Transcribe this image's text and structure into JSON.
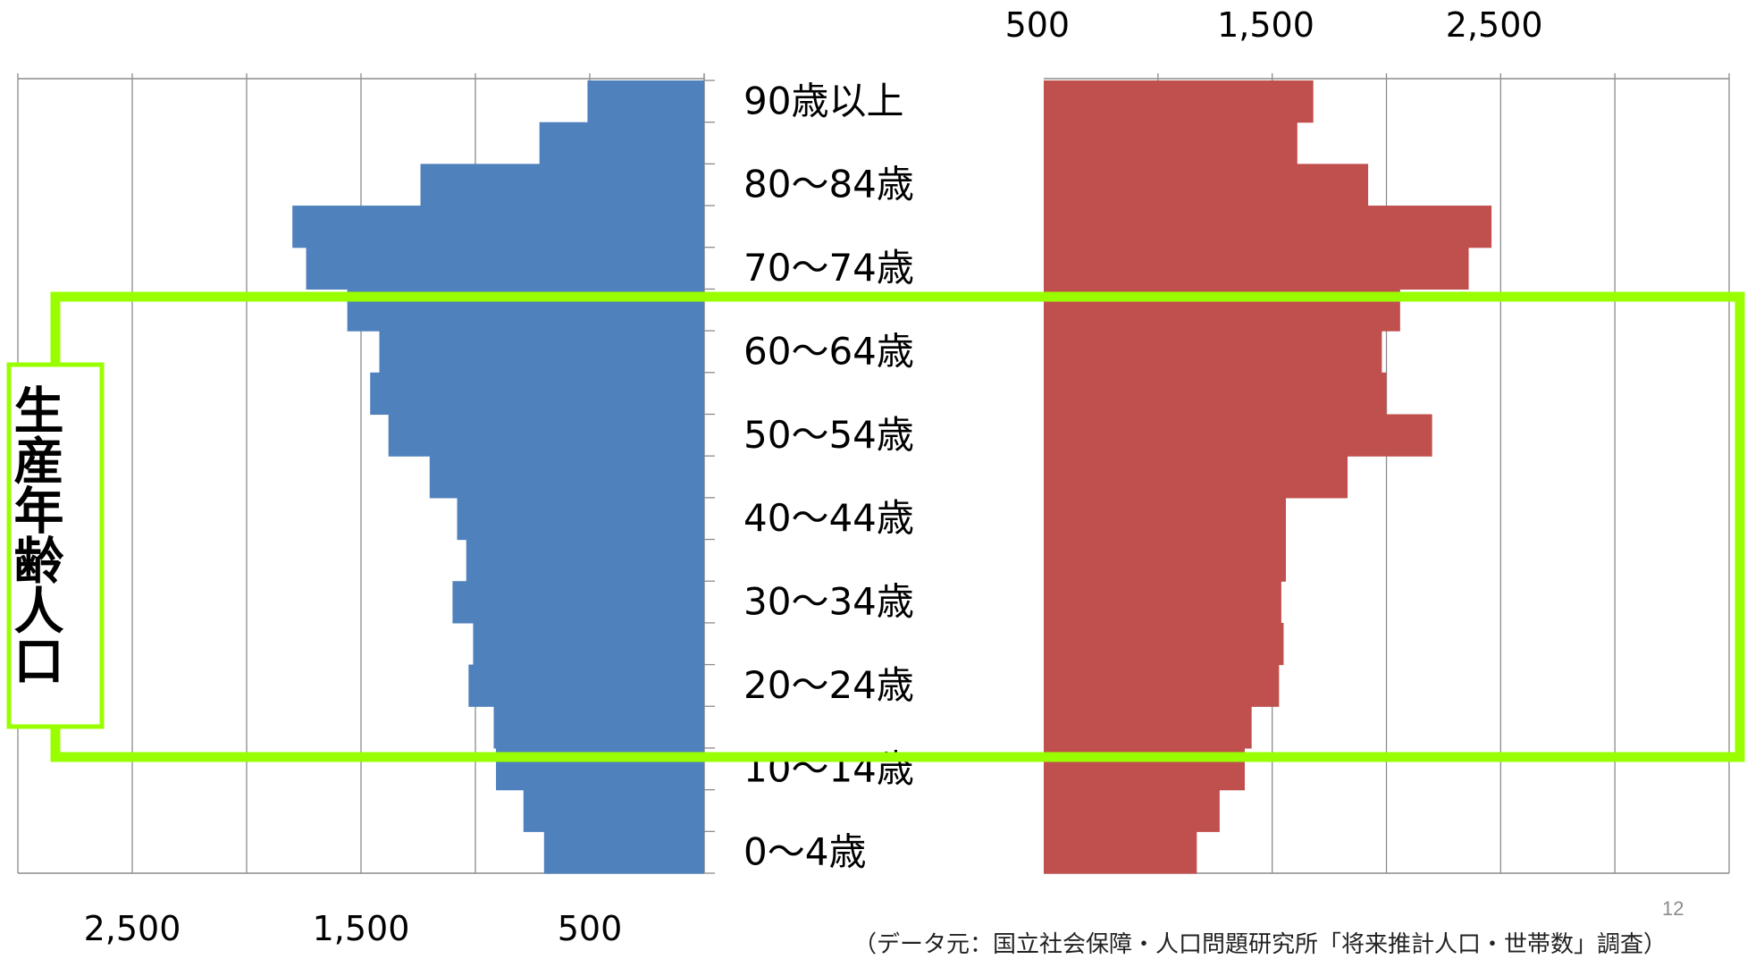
{
  "chart_data": {
    "type": "bar",
    "categories": [
      "0～4歳",
      "5～9歳",
      "10～14歳",
      "15～19歳",
      "20～24歳",
      "25～29歳",
      "30～34歳",
      "35～39歳",
      "40～44歳",
      "45～49歳",
      "50～54歳",
      "55～59歳",
      "60～64歳",
      "65～69歳",
      "70～74歳",
      "75～79歳",
      "80～84歳",
      "85～89歳",
      "90歳以上"
    ],
    "shown_category_labels": [
      "0～4歳",
      "10～14歳",
      "20～24歳",
      "30～34歳",
      "40～44歳",
      "50～54歳",
      "60～64歳",
      "70～74歳",
      "80～84歳",
      "90歳以上"
    ],
    "series": [
      {
        "color": "#4f81bd",
        "side": "left",
        "values": [
          700,
          790,
          910,
          920,
          1030,
          1010,
          1100,
          1040,
          1080,
          1200,
          1380,
          1460,
          1420,
          1560,
          1740,
          1800,
          1240,
          720,
          510
        ]
      },
      {
        "color": "#c0504d",
        "side": "right",
        "values": [
          670,
          770,
          880,
          910,
          1030,
          1050,
          1040,
          1060,
          1060,
          1330,
          1700,
          1500,
          1480,
          1560,
          1860,
          1960,
          1420,
          1110,
          1180
        ]
      }
    ],
    "left_ticks": [
      "2,500",
      "1,500",
      "500"
    ],
    "right_ticks": [
      "500",
      "1,500",
      "2,500"
    ],
    "xlim": [
      0,
      3000
    ],
    "grid": true
  },
  "highlight": {
    "label": "生産年齢人口",
    "color": "#99ff00",
    "range": [
      "15～19歳",
      "60～64歳"
    ]
  },
  "page_number": "12",
  "source_note": "（データ元：国立社会保障・人口問題研究所「将来推計人口・世帯数」調査）"
}
